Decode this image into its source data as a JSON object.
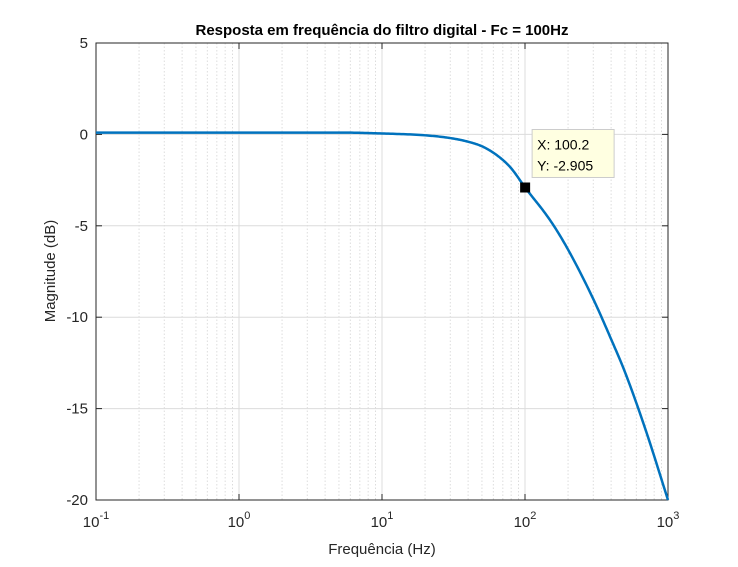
{
  "chart_data": {
    "type": "line",
    "title": "Resposta em frequência do filtro digital - Fc = 100Hz",
    "xlabel": "Frequência (Hz)",
    "ylabel": "Magnitude (dB)",
    "x_scale": "log",
    "xlim": [
      0.1,
      1000
    ],
    "ylim": [
      -20,
      5
    ],
    "x_ticks": [
      {
        "value": 0.1,
        "base": "10",
        "exp": "-1"
      },
      {
        "value": 1,
        "base": "10",
        "exp": "0"
      },
      {
        "value": 10,
        "base": "10",
        "exp": "1"
      },
      {
        "value": 100,
        "base": "10",
        "exp": "2"
      },
      {
        "value": 1000,
        "base": "10",
        "exp": "3"
      }
    ],
    "y_ticks": [
      {
        "value": 5,
        "label": "5"
      },
      {
        "value": 0,
        "label": "0"
      },
      {
        "value": -5,
        "label": "-5"
      },
      {
        "value": -10,
        "label": "-10"
      },
      {
        "value": -15,
        "label": "-15"
      },
      {
        "value": -20,
        "label": "-20"
      }
    ],
    "grid": true,
    "minor_grid": true,
    "series": [
      {
        "color": "#0072BD",
        "x": [
          0.1,
          1,
          5,
          10,
          20,
          30,
          40,
          50,
          60,
          70,
          80,
          100.2,
          150,
          200,
          300,
          400,
          500,
          700,
          1000
        ],
        "values": [
          0.1,
          0.1,
          0.1,
          0.05,
          -0.05,
          -0.2,
          -0.4,
          -0.65,
          -1.0,
          -1.4,
          -1.85,
          -2.905,
          -4.7,
          -6.3,
          -9.0,
          -11.2,
          -13.0,
          -16.2,
          -20.0
        ]
      }
    ],
    "datatip": {
      "x": 100.2,
      "y": -2.905,
      "x_text": "X: 100.2",
      "y_text": "Y: -2.905"
    }
  }
}
